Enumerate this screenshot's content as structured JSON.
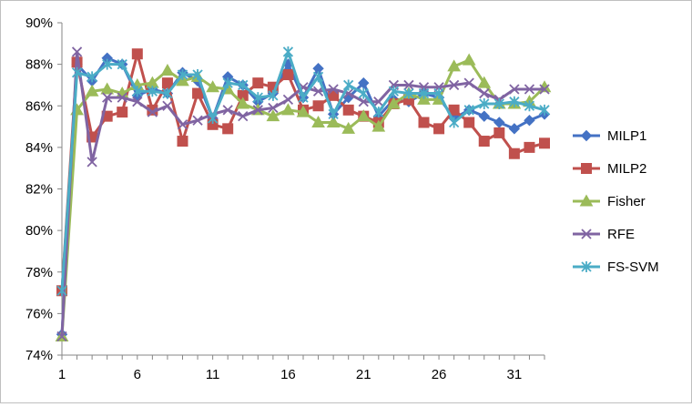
{
  "chart_data": {
    "type": "line",
    "title": "",
    "xlabel": "",
    "ylabel": "",
    "x": [
      1,
      2,
      3,
      4,
      5,
      6,
      7,
      8,
      9,
      10,
      11,
      12,
      13,
      14,
      15,
      16,
      17,
      18,
      19,
      20,
      21,
      22,
      23,
      24,
      25,
      26,
      27,
      28,
      29,
      30,
      31,
      32,
      33
    ],
    "x_ticks": [
      "1",
      "6",
      "11",
      "16",
      "21",
      "26",
      "31"
    ],
    "y_ticks": [
      "74%",
      "76%",
      "78%",
      "80%",
      "82%",
      "84%",
      "86%",
      "88%",
      "90%"
    ],
    "ylim": [
      74,
      90
    ],
    "grid": "none",
    "legend_position": "right",
    "series": [
      {
        "name": "MILP1",
        "color": "#4472C4",
        "marker": "diamond",
        "values": [
          75.0,
          88.0,
          87.2,
          88.3,
          88.0,
          86.5,
          86.8,
          86.6,
          87.6,
          87.2,
          85.4,
          87.4,
          87.0,
          86.2,
          86.6,
          88.0,
          86.4,
          87.8,
          85.6,
          86.4,
          87.1,
          85.5,
          86.3,
          86.2,
          86.6,
          86.4,
          85.4,
          85.8,
          85.5,
          85.2,
          84.9,
          85.3,
          85.6
        ]
      },
      {
        "name": "MILP2",
        "color": "#C0504D",
        "marker": "square",
        "values": [
          77.1,
          88.1,
          84.5,
          85.5,
          85.7,
          88.5,
          85.8,
          87.1,
          84.3,
          86.6,
          85.1,
          84.9,
          86.5,
          87.1,
          86.9,
          87.5,
          85.8,
          86.0,
          86.5,
          85.8,
          85.5,
          85.2,
          86.1,
          86.3,
          85.2,
          84.9,
          85.8,
          85.2,
          84.3,
          84.7,
          83.7,
          84.0,
          84.2
        ]
      },
      {
        "name": "Fisher",
        "color": "#9BBB59",
        "marker": "triangle",
        "values": [
          74.9,
          85.8,
          86.7,
          86.8,
          86.6,
          87.0,
          87.1,
          87.7,
          87.2,
          87.4,
          86.9,
          86.8,
          86.1,
          85.8,
          85.5,
          85.8,
          85.7,
          85.2,
          85.2,
          84.9,
          85.5,
          85.0,
          86.1,
          86.6,
          86.3,
          86.3,
          87.9,
          88.2,
          87.1,
          86.1,
          86.1,
          86.2,
          86.9
        ]
      },
      {
        "name": "RFE",
        "color": "#8064A2",
        "marker": "x",
        "values": [
          74.9,
          88.6,
          83.3,
          86.4,
          86.4,
          86.2,
          85.7,
          86.0,
          85.1,
          85.3,
          85.6,
          85.8,
          85.5,
          85.8,
          85.9,
          86.3,
          86.9,
          86.7,
          86.8,
          86.6,
          86.2,
          86.2,
          87.0,
          87.0,
          86.9,
          86.9,
          87.0,
          87.1,
          86.6,
          86.3,
          86.8,
          86.8,
          86.8
        ]
      },
      {
        "name": "FS-SVM",
        "color": "#4BACC6",
        "marker": "star",
        "values": [
          77.1,
          87.6,
          87.4,
          88.0,
          88.0,
          86.7,
          86.7,
          86.6,
          87.5,
          87.5,
          85.4,
          87.1,
          87.0,
          86.4,
          86.5,
          88.6,
          86.4,
          87.4,
          85.6,
          87.0,
          86.6,
          85.7,
          86.7,
          86.6,
          86.6,
          86.6,
          85.2,
          85.8,
          86.1,
          86.1,
          86.2,
          86.0,
          85.8
        ]
      }
    ]
  }
}
